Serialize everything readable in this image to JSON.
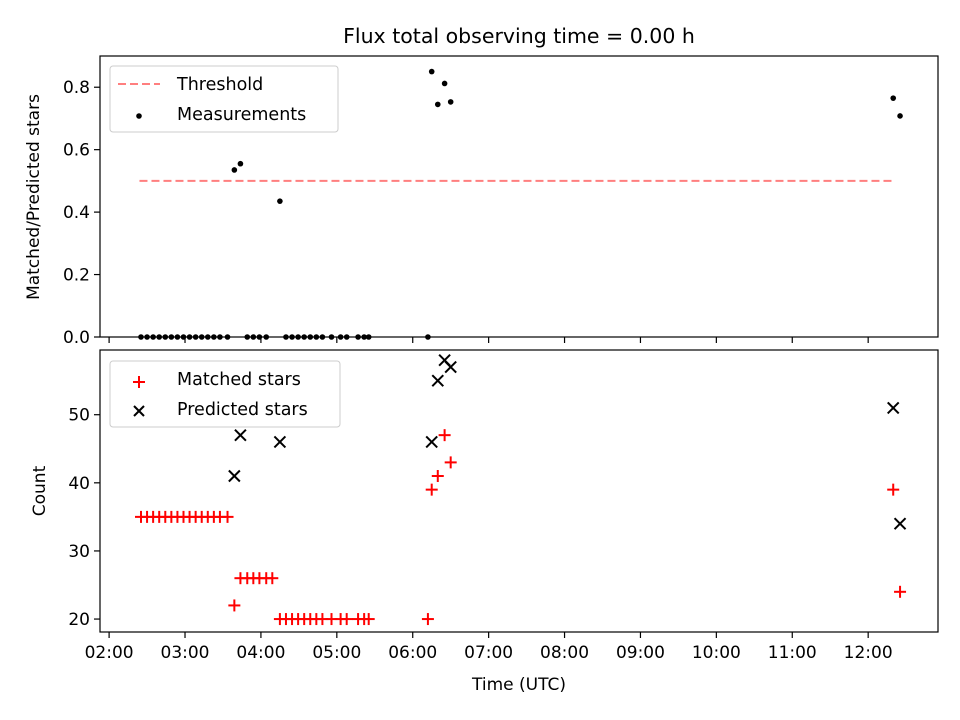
{
  "chart_data": [
    {
      "type": "scatter",
      "title": "Flux total observing time = 0.00 h",
      "xlabel": "",
      "ylabel": "Matched/Predicted stars",
      "ylim": [
        0,
        0.9
      ],
      "yticks": [
        0.0,
        0.2,
        0.4,
        0.6,
        0.8
      ],
      "ytick_labels": [
        "0.0",
        "0.2",
        "0.4",
        "0.6",
        "0.8"
      ],
      "legend_position": "top-left",
      "grid": false,
      "threshold": {
        "name": "Threshold",
        "value": 0.5,
        "x_range": [
          2.4,
          12.35
        ],
        "color": "#ff7f7f"
      },
      "series": [
        {
          "name": "Measurements",
          "marker": "dot",
          "color": "#000000",
          "points": [
            [
              2.42,
              0
            ],
            [
              2.5,
              0
            ],
            [
              2.58,
              0
            ],
            [
              2.66,
              0
            ],
            [
              2.74,
              0
            ],
            [
              2.82,
              0
            ],
            [
              2.9,
              0
            ],
            [
              2.98,
              0
            ],
            [
              3.06,
              0
            ],
            [
              3.14,
              0
            ],
            [
              3.22,
              0
            ],
            [
              3.3,
              0
            ],
            [
              3.38,
              0
            ],
            [
              3.46,
              0
            ],
            [
              3.56,
              0
            ],
            [
              3.65,
              0.535
            ],
            [
              3.73,
              0.555
            ],
            [
              3.82,
              0
            ],
            [
              3.9,
              0
            ],
            [
              3.98,
              0
            ],
            [
              4.07,
              0
            ],
            [
              4.25,
              0.435
            ],
            [
              4.33,
              0
            ],
            [
              4.41,
              0
            ],
            [
              4.49,
              0
            ],
            [
              4.57,
              0
            ],
            [
              4.65,
              0
            ],
            [
              4.73,
              0
            ],
            [
              4.81,
              0
            ],
            [
              4.93,
              0
            ],
            [
              5.05,
              0
            ],
            [
              5.13,
              0
            ],
            [
              5.28,
              0
            ],
            [
              5.36,
              0
            ],
            [
              5.42,
              0
            ],
            [
              6.2,
              0
            ],
            [
              6.25,
              0.85
            ],
            [
              6.33,
              0.745
            ],
            [
              6.42,
              0.812
            ],
            [
              6.5,
              0.753
            ],
            [
              12.33,
              0.765
            ],
            [
              12.42,
              0.708
            ]
          ]
        }
      ]
    },
    {
      "type": "scatter",
      "title": "",
      "xlabel": "Time (UTC)",
      "ylabel": "Count",
      "ylim": [
        18.1,
        59.5
      ],
      "yticks": [
        20,
        30,
        40,
        50
      ],
      "ytick_labels": [
        "20",
        "30",
        "40",
        "50"
      ],
      "xlim": [
        1.88,
        12.92
      ],
      "xticks": [
        2,
        3,
        4,
        5,
        6,
        7,
        8,
        9,
        10,
        11,
        12
      ],
      "xtick_labels": [
        "02:00",
        "03:00",
        "04:00",
        "05:00",
        "06:00",
        "07:00",
        "08:00",
        "09:00",
        "10:00",
        "11:00",
        "12:00"
      ],
      "legend_position": "top-left",
      "grid": false,
      "series": [
        {
          "name": "Matched stars",
          "marker": "plus",
          "color": "#ff0000",
          "points": [
            [
              2.42,
              35
            ],
            [
              2.5,
              35
            ],
            [
              2.58,
              35
            ],
            [
              2.66,
              35
            ],
            [
              2.74,
              35
            ],
            [
              2.82,
              35
            ],
            [
              2.9,
              35
            ],
            [
              2.98,
              35
            ],
            [
              3.06,
              35
            ],
            [
              3.14,
              35
            ],
            [
              3.22,
              35
            ],
            [
              3.3,
              35
            ],
            [
              3.38,
              35
            ],
            [
              3.46,
              35
            ],
            [
              3.56,
              35
            ],
            [
              3.65,
              22
            ],
            [
              3.73,
              26
            ],
            [
              3.82,
              26
            ],
            [
              3.9,
              26
            ],
            [
              3.98,
              26
            ],
            [
              4.07,
              26
            ],
            [
              4.15,
              26
            ],
            [
              4.25,
              20
            ],
            [
              4.33,
              20
            ],
            [
              4.41,
              20
            ],
            [
              4.49,
              20
            ],
            [
              4.57,
              20
            ],
            [
              4.65,
              20
            ],
            [
              4.73,
              20
            ],
            [
              4.81,
              20
            ],
            [
              4.93,
              20
            ],
            [
              5.05,
              20
            ],
            [
              5.13,
              20
            ],
            [
              5.28,
              20
            ],
            [
              5.36,
              20
            ],
            [
              5.42,
              20
            ],
            [
              6.2,
              20
            ],
            [
              6.25,
              39
            ],
            [
              6.33,
              41
            ],
            [
              6.42,
              47
            ],
            [
              6.5,
              43
            ],
            [
              12.33,
              39
            ],
            [
              12.42,
              24
            ]
          ]
        },
        {
          "name": "Predicted stars",
          "marker": "x",
          "color": "#000000",
          "points": [
            [
              3.65,
              41
            ],
            [
              3.73,
              47
            ],
            [
              4.25,
              46
            ],
            [
              6.25,
              46
            ],
            [
              6.33,
              55
            ],
            [
              6.42,
              58
            ],
            [
              6.5,
              57
            ],
            [
              12.33,
              51
            ],
            [
              12.42,
              34
            ]
          ]
        }
      ]
    }
  ]
}
